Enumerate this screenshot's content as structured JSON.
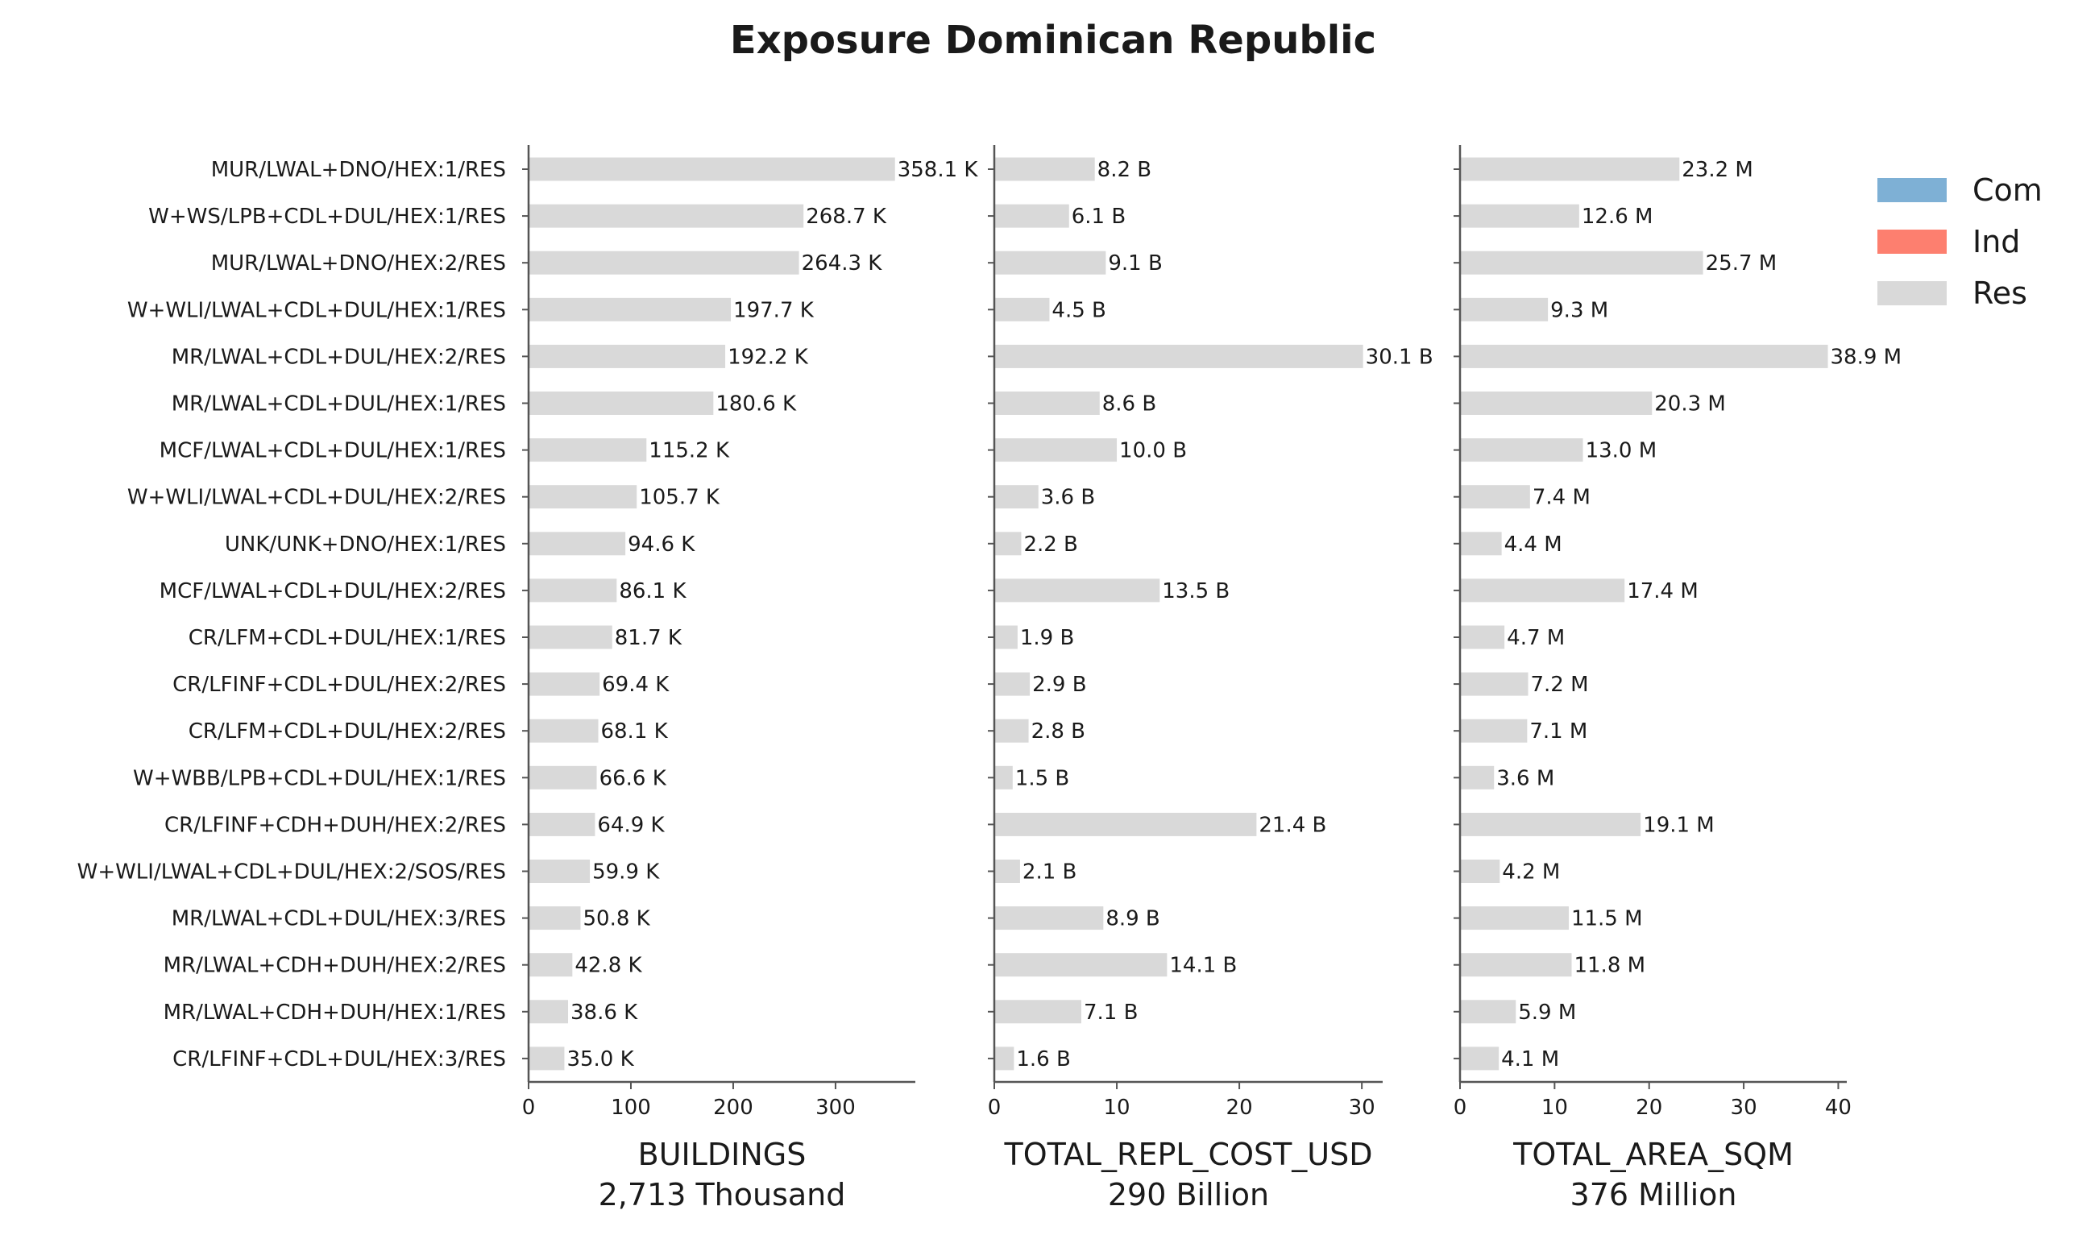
{
  "chart_data": {
    "type": "bar",
    "orientation": "horizontal",
    "title": "Exposure Dominican Republic",
    "categories": [
      "MUR/LWAL+DNO/HEX:1/RES",
      "W+WS/LPB+CDL+DUL/HEX:1/RES",
      "MUR/LWAL+DNO/HEX:2/RES",
      "W+WLI/LWAL+CDL+DUL/HEX:1/RES",
      "MR/LWAL+CDL+DUL/HEX:2/RES",
      "MR/LWAL+CDL+DUL/HEX:1/RES",
      "MCF/LWAL+CDL+DUL/HEX:1/RES",
      "W+WLI/LWAL+CDL+DUL/HEX:2/RES",
      "UNK/UNK+DNO/HEX:1/RES",
      "MCF/LWAL+CDL+DUL/HEX:2/RES",
      "CR/LFM+CDL+DUL/HEX:1/RES",
      "CR/LFINF+CDL+DUL/HEX:2/RES",
      "CR/LFM+CDL+DUL/HEX:2/RES",
      "W+WBB/LPB+CDL+DUL/HEX:1/RES",
      "CR/LFINF+CDH+DUH/HEX:2/RES",
      "W+WLI/LWAL+CDL+DUL/HEX:2/SOS/RES",
      "MR/LWAL+CDL+DUL/HEX:3/RES",
      "MR/LWAL+CDH+DUH/HEX:2/RES",
      "MR/LWAL+CDH+DUH/HEX:1/RES",
      "CR/LFINF+CDL+DUL/HEX:3/RES"
    ],
    "legend": {
      "placement": "top-right",
      "entries": [
        {
          "name": "Com",
          "color": "#7eb0d5"
        },
        {
          "name": "Ind",
          "color": "#fd7f6f"
        },
        {
          "name": "Res",
          "color": "#d9d9d9"
        }
      ]
    },
    "panels": [
      {
        "xlabel": "BUILDINGS",
        "total": "2,713 Thousand",
        "xlim": [
          0,
          378
        ],
        "xticks": [
          0,
          100,
          200,
          300
        ],
        "xticklabels": [
          "0",
          "100",
          "200",
          "300"
        ],
        "values": [
          358.1,
          268.7,
          264.3,
          197.7,
          192.2,
          180.6,
          115.2,
          105.7,
          94.6,
          86.1,
          81.7,
          69.4,
          68.1,
          66.6,
          64.9,
          59.9,
          50.8,
          42.8,
          38.6,
          35.0
        ],
        "value_labels": [
          "358.1 K",
          "268.7 K",
          "264.3 K",
          "197.7 K",
          "192.2 K",
          "180.6 K",
          "115.2 K",
          "105.7 K",
          "94.6 K",
          "86.1 K",
          "81.7 K",
          "69.4 K",
          "68.1 K",
          "66.6 K",
          "64.9 K",
          "59.9 K",
          "50.8 K",
          "42.8 K",
          "38.6 K",
          "35.0 K"
        ]
      },
      {
        "xlabel": "TOTAL_REPL_COST_USD",
        "total": "290 Billion",
        "xlim": [
          0,
          31.7
        ],
        "xticks": [
          0,
          10,
          20,
          30
        ],
        "xticklabels": [
          "0",
          "10",
          "20",
          "30"
        ],
        "values": [
          8.2,
          6.1,
          9.1,
          4.5,
          30.1,
          8.6,
          10.0,
          3.6,
          2.2,
          13.5,
          1.9,
          2.9,
          2.8,
          1.5,
          21.4,
          2.1,
          8.9,
          14.1,
          7.1,
          1.6
        ],
        "value_labels": [
          "8.2 B",
          "6.1 B",
          "9.1 B",
          "4.5 B",
          "30.1 B",
          "8.6 B",
          "10.0 B",
          "3.6 B",
          "2.2 B",
          "13.5 B",
          "1.9 B",
          "2.9 B",
          "2.8 B",
          "1.5 B",
          "21.4 B",
          "2.1 B",
          "8.9 B",
          "14.1 B",
          "7.1 B",
          "1.6 B"
        ]
      },
      {
        "xlabel": "TOTAL_AREA_SQM",
        "total": "376 Million",
        "xlim": [
          0,
          40.9
        ],
        "xticks": [
          0,
          10,
          20,
          30,
          40
        ],
        "xticklabels": [
          "0",
          "10",
          "20",
          "30",
          "40"
        ],
        "values": [
          23.2,
          12.6,
          25.7,
          9.3,
          38.9,
          20.3,
          13.0,
          7.4,
          4.4,
          17.4,
          4.7,
          7.2,
          7.1,
          3.6,
          19.1,
          4.2,
          11.5,
          11.8,
          5.9,
          4.1
        ],
        "value_labels": [
          "23.2 M",
          "12.6 M",
          "25.7 M",
          "9.3 M",
          "38.9 M",
          "20.3 M",
          "13.0 M",
          "7.4 M",
          "4.4 M",
          "17.4 M",
          "4.7 M",
          "7.2 M",
          "7.1 M",
          "3.6 M",
          "19.1 M",
          "4.2 M",
          "11.5 M",
          "11.8 M",
          "5.9 M",
          "4.1 M"
        ]
      }
    ]
  }
}
